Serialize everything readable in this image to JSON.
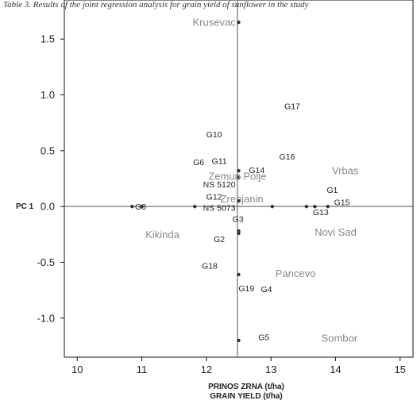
{
  "caption": "Table 3. Results of the joint regression analysis for grain yield of sunflower in the study",
  "chart_data": {
    "type": "scatter",
    "xlabel": "PRINOS ZRNA (t/ha)",
    "xlabel2": "GRAIN YIELD (t/ha)",
    "ylabel": "PC 1",
    "xlim": [
      9.8,
      15.2
    ],
    "ylim": [
      -1.35,
      1.85
    ],
    "xticks": [
      10,
      11,
      12,
      13,
      14,
      15
    ],
    "yticks": [
      1.5,
      1.0,
      0.5,
      0.0,
      -0.5,
      -1.0
    ],
    "ref_x": 12.48,
    "ref_y": 0.0,
    "grid": false,
    "genotypes": [
      {
        "label": "G8",
        "x": 10.98,
        "y": 0.0
      },
      {
        "label": "G10",
        "x": 12.12,
        "y": 0.65
      },
      {
        "label": "G11",
        "x": 12.2,
        "y": 0.41
      },
      {
        "label": "G6",
        "x": 11.88,
        "y": 0.4
      },
      {
        "label": "G12",
        "x": 12.12,
        "y": 0.09
      },
      {
        "label": "NS 5120",
        "x": 12.2,
        "y": 0.2
      },
      {
        "label": "NS 5073",
        "x": 12.2,
        "y": -0.01
      },
      {
        "label": "G14",
        "x": 12.78,
        "y": 0.33
      },
      {
        "label": "G16",
        "x": 13.25,
        "y": 0.45
      },
      {
        "label": "G17",
        "x": 13.33,
        "y": 0.9
      },
      {
        "label": "G1",
        "x": 13.95,
        "y": 0.15
      },
      {
        "label": "G15",
        "x": 14.1,
        "y": 0.04
      },
      {
        "label": "G13",
        "x": 13.77,
        "y": -0.05
      },
      {
        "label": "G3",
        "x": 12.49,
        "y": -0.11
      },
      {
        "label": "G2",
        "x": 12.2,
        "y": -0.29
      },
      {
        "label": "G18",
        "x": 12.05,
        "y": -0.53
      },
      {
        "label": "G19",
        "x": 12.62,
        "y": -0.73
      },
      {
        "label": "G4",
        "x": 12.93,
        "y": -0.74
      },
      {
        "label": "G5",
        "x": 12.89,
        "y": -1.17
      }
    ],
    "environments": [
      {
        "label": "Krusevac",
        "x": 12.12,
        "y": 1.65
      },
      {
        "label": "Zemun Polje",
        "x": 12.48,
        "y": 0.27
      },
      {
        "label": "Zrenjanin",
        "x": 12.55,
        "y": 0.07
      },
      {
        "label": "Vrbas",
        "x": 14.15,
        "y": 0.32
      },
      {
        "label": "Kikinda",
        "x": 11.32,
        "y": -0.25
      },
      {
        "label": "Novi Sad",
        "x": 14.0,
        "y": -0.23
      },
      {
        "label": "Pancevo",
        "x": 13.38,
        "y": -0.6
      },
      {
        "label": "Sombor",
        "x": 14.06,
        "y": -1.18
      }
    ],
    "points": [
      {
        "x": 12.5,
        "y": 1.65
      },
      {
        "x": 12.5,
        "y": 0.32
      },
      {
        "x": 12.5,
        "y": 0.26
      },
      {
        "x": 12.5,
        "y": 0.05
      },
      {
        "x": 12.5,
        "y": -0.22
      },
      {
        "x": 12.5,
        "y": -0.24
      },
      {
        "x": 12.5,
        "y": -0.61
      },
      {
        "x": 12.5,
        "y": -1.2
      },
      {
        "x": 10.85,
        "y": 0.0
      },
      {
        "x": 11.0,
        "y": 0.0
      },
      {
        "x": 11.82,
        "y": 0.0
      },
      {
        "x": 13.02,
        "y": 0.0
      },
      {
        "x": 13.55,
        "y": 0.0
      },
      {
        "x": 13.68,
        "y": 0.0
      },
      {
        "x": 13.88,
        "y": 0.0
      }
    ]
  }
}
